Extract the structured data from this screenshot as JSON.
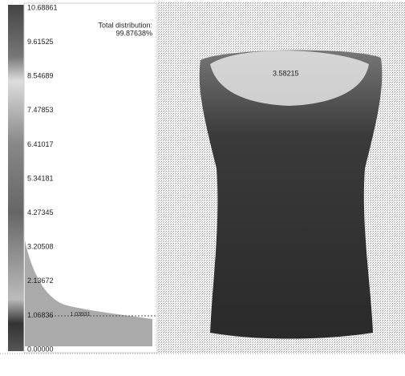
{
  "scale": {
    "labels": [
      "10.68861",
      "9.61525",
      "8.54689",
      "7.47853",
      "6.41017",
      "5.34181",
      "4.27345",
      "3.20508",
      "2.13672",
      "1.06836",
      "0.00000"
    ]
  },
  "distribution": {
    "title": "Total distribution:",
    "value": "99.87638%"
  },
  "histogram": {
    "marker_label": "1.03931"
  },
  "model": {
    "annotation": "3.58215"
  }
}
